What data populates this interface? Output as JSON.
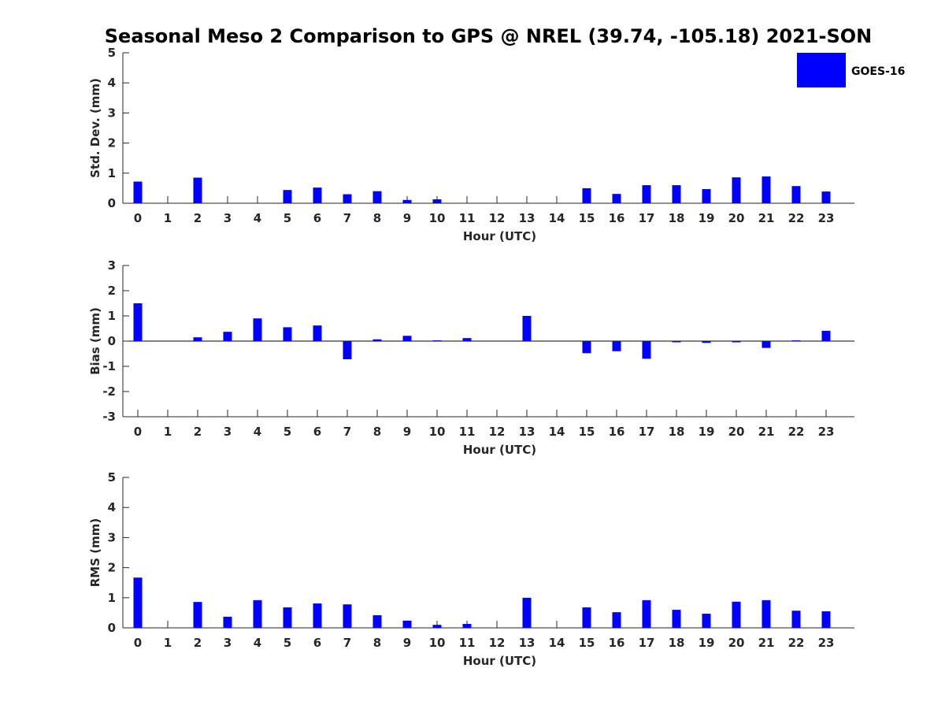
{
  "title": "Seasonal Meso 2 Comparison to GPS @ NREL (39.74, -105.18) 2021-SON",
  "legend": {
    "label": "GOES-16",
    "color": "#0000ff"
  },
  "chart_data": [
    {
      "type": "bar",
      "ylabel": "Std. Dev. (mm)",
      "xlabel": "Hour (UTC)",
      "ylim": [
        0,
        5
      ],
      "yticks": [
        0,
        1,
        2,
        3,
        4,
        5
      ],
      "categories": [
        "0",
        "1",
        "2",
        "3",
        "4",
        "5",
        "6",
        "7",
        "8",
        "9",
        "10",
        "11",
        "12",
        "13",
        "14",
        "15",
        "16",
        "17",
        "18",
        "19",
        "20",
        "21",
        "22",
        "23"
      ],
      "series": [
        {
          "name": "GOES-16",
          "values": [
            0.72,
            null,
            0.85,
            null,
            null,
            0.44,
            0.52,
            0.3,
            0.4,
            0.11,
            0.13,
            null,
            null,
            null,
            null,
            0.5,
            0.31,
            0.6,
            0.6,
            0.47,
            0.86,
            0.89,
            0.57,
            0.39
          ]
        }
      ]
    },
    {
      "type": "bar",
      "ylabel": "Bias (mm)",
      "xlabel": "Hour (UTC)",
      "ylim": [
        -3,
        3
      ],
      "yticks": [
        -3,
        -2,
        -1,
        0,
        1,
        2,
        3
      ],
      "categories": [
        "0",
        "1",
        "2",
        "3",
        "4",
        "5",
        "6",
        "7",
        "8",
        "9",
        "10",
        "11",
        "12",
        "13",
        "14",
        "15",
        "16",
        "17",
        "18",
        "19",
        "20",
        "21",
        "22",
        "23"
      ],
      "series": [
        {
          "name": "GOES-16",
          "values": [
            1.5,
            null,
            0.15,
            0.37,
            0.9,
            0.55,
            0.62,
            -0.72,
            0.07,
            0.21,
            0.03,
            0.12,
            null,
            1.0,
            null,
            -0.48,
            -0.4,
            -0.7,
            -0.04,
            -0.07,
            -0.04,
            -0.27,
            0.03,
            0.41
          ]
        }
      ]
    },
    {
      "type": "bar",
      "ylabel": "RMS (mm)",
      "xlabel": "Hour (UTC)",
      "ylim": [
        0,
        5
      ],
      "yticks": [
        0,
        1,
        2,
        3,
        4,
        5
      ],
      "categories": [
        "0",
        "1",
        "2",
        "3",
        "4",
        "5",
        "6",
        "7",
        "8",
        "9",
        "10",
        "11",
        "12",
        "13",
        "14",
        "15",
        "16",
        "17",
        "18",
        "19",
        "20",
        "21",
        "22",
        "23"
      ],
      "series": [
        {
          "name": "GOES-16",
          "values": [
            1.67,
            null,
            0.86,
            0.37,
            0.92,
            0.68,
            0.81,
            0.78,
            0.42,
            0.24,
            0.1,
            0.13,
            null,
            1.0,
            null,
            0.68,
            0.52,
            0.92,
            0.6,
            0.47,
            0.87,
            0.92,
            0.57,
            0.55
          ]
        }
      ]
    }
  ]
}
